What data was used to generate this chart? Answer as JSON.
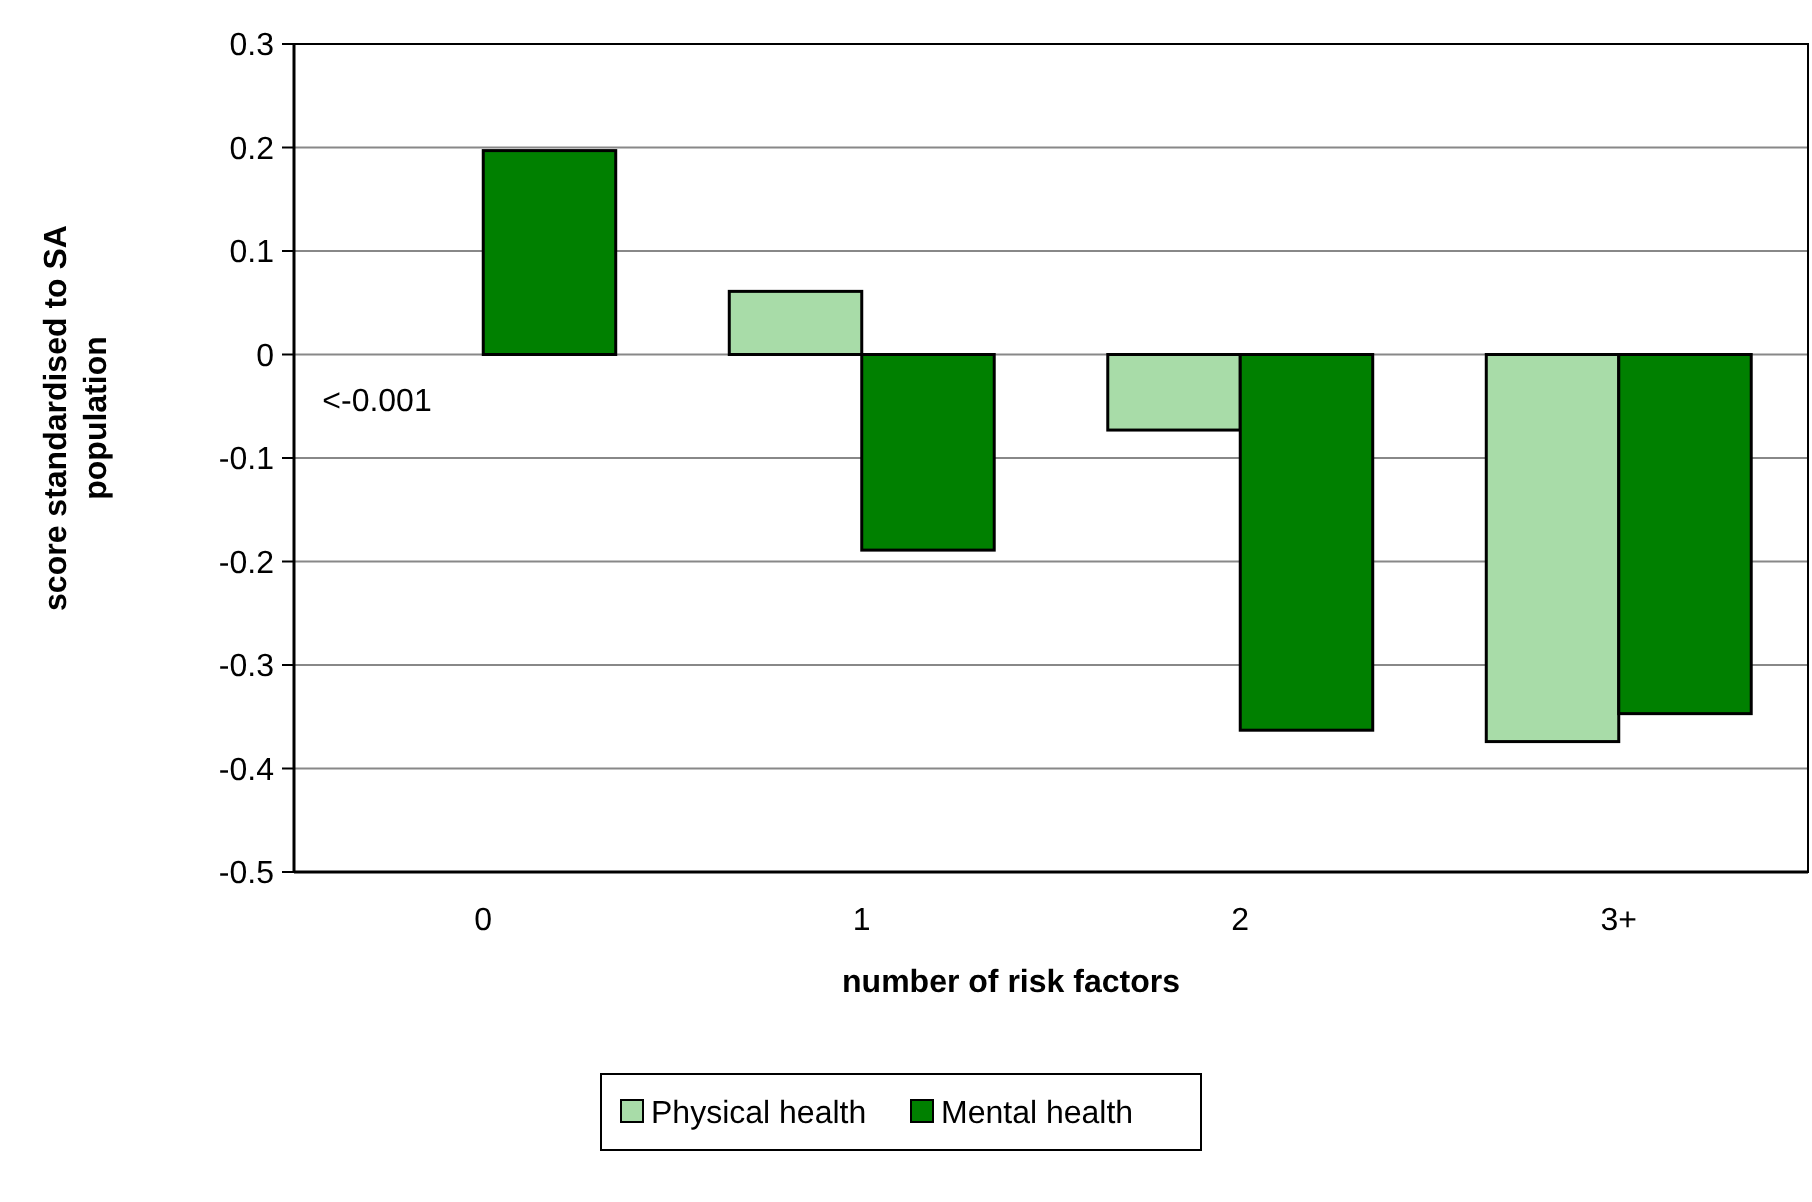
{
  "chart_data": {
    "type": "bar",
    "xlabel": "number of risk factors",
    "ylabel": "score standardised to SA population",
    "categories": [
      "0",
      "1",
      "2",
      "3+"
    ],
    "series": [
      {
        "name": "Physical health",
        "color": "#a8dca8",
        "values": [
          0,
          0.061,
          -0.073,
          -0.374
        ]
      },
      {
        "name": "Mental health",
        "color": "#008000",
        "values": [
          0.197,
          -0.189,
          -0.363,
          -0.347
        ]
      }
    ],
    "ylim": [
      -0.5,
      0.3
    ],
    "yticks": [
      -0.5,
      -0.4,
      -0.3,
      -0.2,
      -0.1,
      0,
      0.1,
      0.2,
      0.3
    ],
    "grid": "y",
    "legend": "bottom",
    "annotations": [
      {
        "text": "<-0.001",
        "x": "0",
        "y": 0
      }
    ]
  }
}
